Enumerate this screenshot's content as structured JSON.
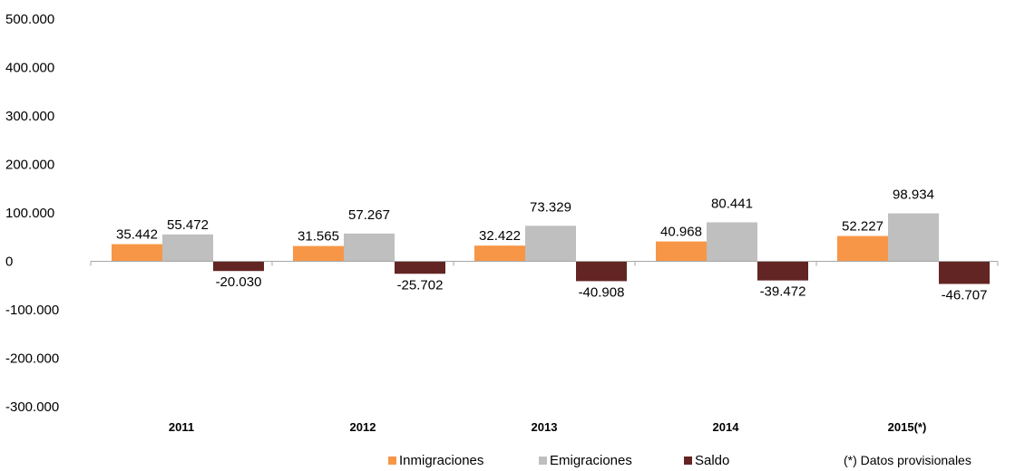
{
  "chart_data": {
    "type": "bar",
    "title": "",
    "xlabel": "",
    "ylabel": "",
    "categories": [
      "2011",
      "2012",
      "2013",
      "2014",
      "2015(*)"
    ],
    "ylim": [
      -300000,
      500000
    ],
    "yticks": [
      500000,
      400000,
      300000,
      200000,
      100000,
      0,
      -100000,
      -200000,
      -300000
    ],
    "ytick_labels": [
      "500.000",
      "400.000",
      "300.000",
      "200.000",
      "100.000",
      "0",
      "-100.000",
      "-200.000",
      "-300.000"
    ],
    "grid": false,
    "legend_position": "bottom",
    "series": [
      {
        "name": "Inmigraciones",
        "color": "#F79646",
        "values": [
          35442,
          31565,
          32422,
          40968,
          52227
        ],
        "labels": [
          "35.442",
          "31.565",
          "32.422",
          "40.968",
          "52.227"
        ]
      },
      {
        "name": "Emigraciones",
        "color": "#BFBFBF",
        "values": [
          55472,
          57267,
          73329,
          80441,
          98934
        ],
        "labels": [
          "55.472",
          "57.267",
          "73.329",
          "80.441",
          "98.934"
        ]
      },
      {
        "name": "Saldo",
        "color": "#632523",
        "values": [
          -20030,
          -25702,
          -40908,
          -39472,
          -46707
        ],
        "labels": [
          "-20.030",
          "-25.702",
          "-40.908",
          "-39.472",
          "-46.707"
        ]
      }
    ],
    "note": "(*) Datos provisionales"
  }
}
